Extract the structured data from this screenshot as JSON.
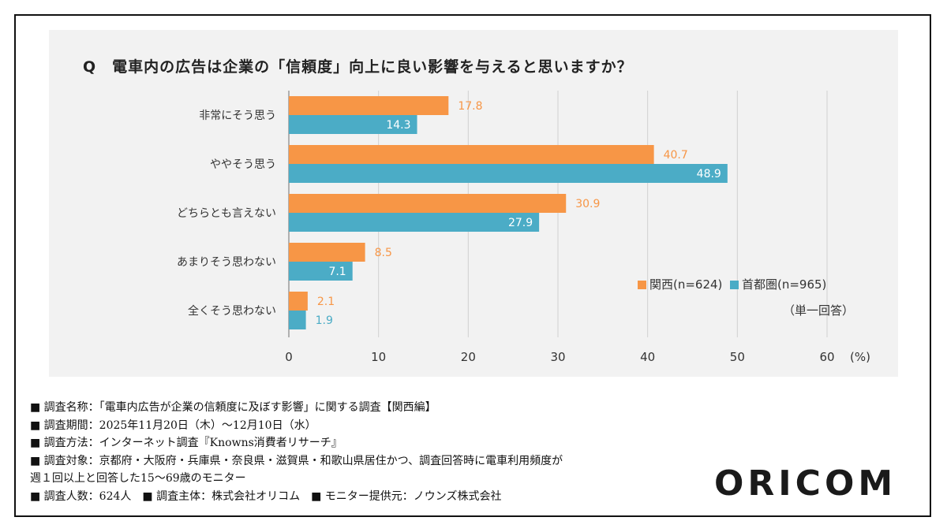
{
  "title": "Q　電車内の広告は企業の「信頼度」向上に良い影響を与えると思いますか？",
  "chart_data": {
    "type": "bar",
    "orientation": "horizontal",
    "title": "Q　電車内の広告は企業の「信頼度」向上に良い影響を与えると思いますか？",
    "categories": [
      "非常にそう思う",
      "ややそう思う",
      "どちらとも言えない",
      "あまりそう思わない",
      "全くそう思わない"
    ],
    "series": [
      {
        "name": "関西(n=624)",
        "color": "#f79646",
        "values": [
          17.8,
          40.7,
          30.9,
          8.5,
          2.1
        ]
      },
      {
        "name": "首都圏(n=965)",
        "color": "#4bacc6",
        "values": [
          14.3,
          48.9,
          27.9,
          7.1,
          1.9
        ]
      }
    ],
    "xlim": [
      0,
      60
    ],
    "xticks": [
      "0",
      "10",
      "20",
      "30",
      "40",
      "50",
      "60"
    ],
    "xunit": "(%)",
    "grid": true,
    "legend": "right",
    "note": "（単一回答）"
  },
  "notes": [
    "■ 調査名称：「電車内広告が企業の信頼度に及ぼす影響」に関する調査【関西編】",
    "■ 調査期間：2025年11月20日（木）～12月10日（水）",
    "■ 調査方法：インターネット調査『Knowns消費者リサーチ』",
    "■ 調査対象：京都府・大阪府・兵庫県・奈良県・滋賀県・和歌山県居住かつ、調査回答時に電車利用頻度が",
    "週１回以上と回答した15～69歳のモニター",
    "■ 調査人数：624人　■ 調査主体：株式会社オリコム　■ モニター提供元：ノウンズ株式会社"
  ],
  "logo": "ORICOM"
}
